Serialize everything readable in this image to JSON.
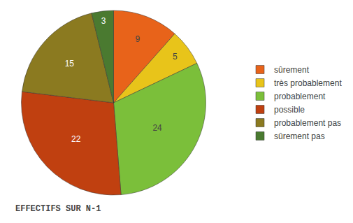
{
  "chart_data": {
    "type": "pie",
    "labels": [
      "sûrement",
      "très probablement",
      "probablement",
      "possible",
      "probablement pas",
      "sûrement pas"
    ],
    "values": [
      9,
      5,
      24,
      22,
      15,
      3
    ],
    "colors": [
      "#E8631A",
      "#E8C41A",
      "#7BBF3A",
      "#C04010",
      "#8B7A20",
      "#4A7A30"
    ],
    "data_labels": true,
    "legend": "right",
    "annotations": [
      "EFFECTIFS SUR N-1"
    ]
  }
}
